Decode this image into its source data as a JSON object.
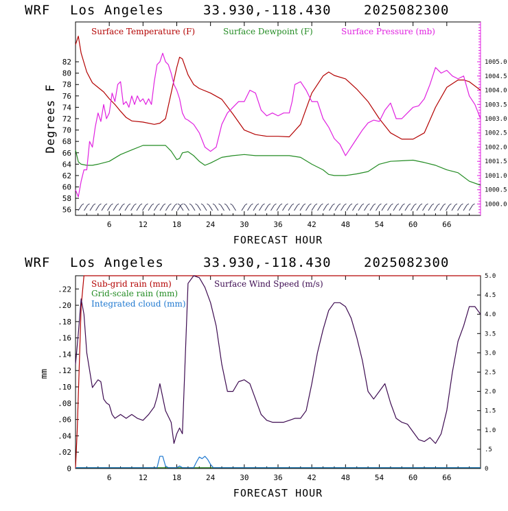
{
  "top_panel": {
    "header": {
      "model": "WRF",
      "location": "Los Angeles",
      "coords": "33.930,-118.430",
      "run": "2025082300"
    }
  },
  "bottom_panel": {
    "header": {
      "model": "WRF",
      "location": "Los Angeles",
      "coords": "33.930,-118.430",
      "run": "2025082300"
    }
  },
  "chart_data": [
    {
      "type": "line",
      "title": "WRF Los Angeles 33.930,-118.430 2025082300",
      "xlabel": "FORECAST HOUR",
      "ylabel": "Degrees F",
      "xlim": [
        0,
        72
      ],
      "ylim": [
        55,
        89
      ],
      "x_ticks": [
        6,
        12,
        18,
        24,
        30,
        36,
        42,
        48,
        54,
        60,
        66
      ],
      "x_tick_labels": [
        "6",
        "12",
        "18",
        "24",
        "30",
        "36",
        "42",
        "48",
        "54",
        "60",
        "66"
      ],
      "y_ticks": [
        56,
        58,
        60,
        62,
        64,
        66,
        68,
        70,
        72,
        74,
        76,
        78,
        80,
        82
      ],
      "y_tick_labels": [
        "56",
        "58",
        "60",
        "62",
        "64",
        "66",
        "68",
        "70",
        "72",
        "74",
        "76",
        "78",
        "80",
        "82"
      ],
      "y2lim": [
        999.6,
        1006.4
      ],
      "y2_ticks": [
        1000.0,
        1000.5,
        1001.0,
        1001.5,
        1002.0,
        1002.5,
        1003.0,
        1003.5,
        1004.0,
        1004.5,
        1005.0
      ],
      "y2_tick_labels": [
        "1000.0",
        "1000.5",
        "1001.0",
        "1001.5",
        "1002.0",
        "1002.5",
        "1003.0",
        "1003.5",
        "1004.0",
        "1004.5",
        "1005.0"
      ],
      "legend_placement": "top",
      "grid": false,
      "series": [
        {
          "name": "Surface Temperature (F)",
          "color": "#b30000",
          "axis": "left",
          "x": [
            0,
            0.5,
            1,
            2,
            3,
            4,
            5,
            6,
            7,
            8,
            9,
            10,
            12,
            14,
            15,
            16,
            17,
            18,
            18.5,
            19,
            20,
            21,
            22,
            24,
            26,
            28,
            30,
            32,
            34,
            36,
            38,
            40,
            42,
            44,
            45,
            46,
            48,
            50,
            52,
            54,
            56,
            58,
            60,
            62,
            64,
            66,
            68,
            69,
            70,
            72
          ],
          "y": [
            85,
            86.5,
            83.5,
            80.2,
            78.3,
            77.5,
            76.7,
            75.5,
            74.5,
            73.3,
            72.2,
            71.6,
            71.4,
            71,
            71.2,
            72,
            76.5,
            81,
            82.8,
            82.5,
            79.7,
            78,
            77.3,
            76.5,
            75.4,
            72.8,
            70,
            69.2,
            68.9,
            68.9,
            68.8,
            71,
            76.5,
            79.5,
            80.2,
            79.6,
            79,
            77.2,
            75,
            72,
            69.5,
            68.4,
            68.4,
            69.5,
            74,
            77.5,
            78.8,
            78.8,
            78.5,
            77
          ]
        },
        {
          "name": "Surface Dewpoint (F)",
          "color": "#228b22",
          "axis": "left",
          "x": [
            0,
            0.5,
            1,
            2,
            3,
            4,
            6,
            8,
            10,
            12,
            14,
            16,
            17,
            18,
            18.5,
            19,
            20,
            21,
            22,
            23,
            24,
            26,
            28,
            30,
            32,
            34,
            36,
            38,
            40,
            42,
            44,
            45,
            46,
            48,
            50,
            52,
            54,
            56,
            58,
            60,
            62,
            64,
            66,
            68,
            70,
            72
          ],
          "y": [
            66.5,
            64.4,
            64,
            63.8,
            63.8,
            64,
            64.5,
            65.7,
            66.5,
            67.3,
            67.3,
            67.3,
            66.3,
            64.8,
            65,
            66,
            66.2,
            65.5,
            64.5,
            63.8,
            64.2,
            65.2,
            65.5,
            65.7,
            65.5,
            65.5,
            65.5,
            65.5,
            65.2,
            64,
            63,
            62.2,
            62,
            62,
            62.3,
            62.7,
            64,
            64.5,
            64.6,
            64.7,
            64.3,
            63.8,
            63,
            62.5,
            61,
            60.3
          ]
        },
        {
          "name": "Surface Pressure (mb)",
          "color": "#e020e0",
          "axis": "right",
          "x": [
            0,
            0.5,
            1,
            1.5,
            2,
            2.5,
            3,
            3.5,
            4,
            4.5,
            5,
            5.5,
            6,
            6.5,
            7,
            7.5,
            8,
            8.5,
            9,
            9.5,
            10,
            10.5,
            11,
            11.5,
            12,
            12.5,
            13,
            13.5,
            14,
            14.5,
            15,
            15.5,
            16,
            16.5,
            17,
            17.5,
            18,
            18.5,
            19,
            19.5,
            20,
            21,
            22,
            23,
            24,
            25,
            26,
            27,
            28,
            29,
            30,
            31,
            32,
            33,
            34,
            35,
            36,
            37,
            38,
            38.5,
            39,
            40,
            41,
            42,
            43,
            44,
            45,
            46,
            47,
            48,
            49,
            50,
            51,
            52,
            53,
            54,
            55,
            56,
            57,
            58,
            59,
            60,
            61,
            62,
            63,
            64,
            65,
            66,
            67,
            68,
            69,
            70,
            71,
            72
          ],
          "y": [
            1000.5,
            1000.25,
            1000.8,
            1001.2,
            1001.2,
            1002.2,
            1002.0,
            1002.7,
            1003.2,
            1002.9,
            1003.5,
            1003.0,
            1003.2,
            1003.9,
            1003.6,
            1004.2,
            1004.3,
            1003.5,
            1003.6,
            1003.4,
            1003.8,
            1003.5,
            1003.8,
            1003.6,
            1003.7,
            1003.5,
            1003.7,
            1003.5,
            1004.3,
            1004.9,
            1005.0,
            1005.3,
            1005.0,
            1004.9,
            1004.6,
            1004.2,
            1004.0,
            1003.7,
            1003.2,
            1003.0,
            1002.95,
            1002.8,
            1002.5,
            1002.0,
            1001.85,
            1002.0,
            1002.8,
            1003.2,
            1003.4,
            1003.6,
            1003.6,
            1004.0,
            1003.9,
            1003.3,
            1003.1,
            1003.2,
            1003.1,
            1003.2,
            1003.2,
            1003.6,
            1004.2,
            1004.3,
            1004.0,
            1003.6,
            1003.6,
            1003.0,
            1002.7,
            1002.3,
            1002.1,
            1001.7,
            1002.0,
            1002.3,
            1002.6,
            1002.85,
            1002.95,
            1002.9,
            1003.3,
            1003.55,
            1003.0,
            1003.0,
            1003.2,
            1003.4,
            1003.45,
            1003.7,
            1004.2,
            1004.8,
            1004.6,
            1004.7,
            1004.5,
            1004.4,
            1004.5,
            1003.8,
            1003.5,
            1003.0
          ]
        }
      ]
    },
    {
      "type": "line",
      "title": "WRF Los Angeles 33.930,-118.430 2025082300",
      "xlabel": "FORECAST HOUR",
      "ylabel": "mm",
      "xlim": [
        0,
        72
      ],
      "ylim": [
        0,
        0.2362
      ],
      "x_ticks": [
        6,
        12,
        18,
        24,
        30,
        36,
        42,
        48,
        54,
        60,
        66
      ],
      "x_tick_labels": [
        "6",
        "12",
        "18",
        "24",
        "30",
        "36",
        "42",
        "48",
        "54",
        "60",
        "66"
      ],
      "y_ticks": [
        0,
        0.02,
        0.04,
        0.06,
        0.08,
        0.1,
        0.12,
        0.14,
        0.16,
        0.18,
        0.2,
        0.22
      ],
      "y_tick_labels": [
        "0",
        ".02",
        ".04",
        ".06",
        ".08",
        ".10",
        ".12",
        ".14",
        ".16",
        ".18",
        ".20",
        ".22"
      ],
      "y2lim": [
        0,
        5.0
      ],
      "y2_ticks": [
        0,
        0.5,
        1.0,
        1.5,
        2.0,
        2.5,
        3.0,
        3.5,
        4.0,
        4.5,
        5.0
      ],
      "y2_tick_labels": [
        "0",
        ".5",
        "1.0",
        "1.5",
        "2.0",
        "2.5",
        "3.0",
        "3.5",
        "4.0",
        "4.5",
        "5.0"
      ],
      "legend_placement": "top-left",
      "grid": false,
      "series": [
        {
          "name": "Sub-grid rain (mm)",
          "color": "#b30000",
          "axis": "right",
          "x": [
            0,
            0.3,
            1,
            1.5,
            2,
            72
          ],
          "y": [
            0,
            1.0,
            4.2,
            5.0,
            5.0,
            5.0
          ]
        },
        {
          "name": "Grid-scale rain (mm)",
          "color": "#228b22",
          "axis": "left",
          "x": [
            0,
            72
          ],
          "y": [
            0.001,
            0.001
          ]
        },
        {
          "name": "Integrated cloud (mm)",
          "color": "#1e78d0",
          "axis": "left",
          "x": [
            0,
            14.5,
            15,
            15.5,
            16,
            16.5,
            17,
            18,
            18.5,
            19,
            19.5,
            20,
            21,
            21.5,
            22,
            22.5,
            23,
            23.5,
            24,
            24.5,
            25,
            72
          ],
          "y": [
            0.001,
            0.001,
            0.015,
            0.015,
            0.003,
            0.001,
            0.001,
            0.001,
            0.003,
            0.001,
            0.001,
            0.001,
            0.001,
            0.008,
            0.014,
            0.012,
            0.015,
            0.011,
            0.005,
            0.001,
            0.001,
            0.001
          ]
        },
        {
          "name": "Surface Wind Speed (m/s)",
          "color": "#3c0a50",
          "axis": "right",
          "x": [
            0,
            0.5,
            1,
            1.5,
            2,
            3,
            4,
            4.5,
            5,
            5.5,
            6,
            6.5,
            7,
            8,
            9,
            10,
            11,
            12,
            13,
            14,
            14.5,
            15,
            16,
            17,
            17.5,
            18,
            18.5,
            19,
            20,
            21,
            22,
            23,
            24,
            25,
            26,
            27,
            28,
            29,
            30,
            31,
            32,
            33,
            34,
            35,
            36,
            37,
            38,
            39,
            40,
            41,
            42,
            43,
            44,
            45,
            46,
            47,
            48,
            49,
            50,
            51,
            52,
            53,
            54,
            55,
            56,
            57,
            58,
            59,
            60,
            61,
            62,
            63,
            64,
            65,
            66,
            67,
            68,
            69,
            70,
            71,
            72
          ],
          "y": [
            2.7,
            3.5,
            4.4,
            4.0,
            3.0,
            2.1,
            2.3,
            2.25,
            1.8,
            1.7,
            1.65,
            1.4,
            1.3,
            1.4,
            1.3,
            1.4,
            1.3,
            1.25,
            1.4,
            1.6,
            1.85,
            2.2,
            1.5,
            1.2,
            0.65,
            0.9,
            1.05,
            0.9,
            4.8,
            5.0,
            4.95,
            4.7,
            4.3,
            3.7,
            2.7,
            2.0,
            2.0,
            2.25,
            2.3,
            2.2,
            1.8,
            1.4,
            1.25,
            1.2,
            1.2,
            1.2,
            1.25,
            1.3,
            1.3,
            1.5,
            2.2,
            3.0,
            3.6,
            4.1,
            4.3,
            4.3,
            4.2,
            3.9,
            3.4,
            2.8,
            2.0,
            1.8,
            2.0,
            2.2,
            1.7,
            1.3,
            1.2,
            1.15,
            0.95,
            0.75,
            0.7,
            0.8,
            0.65,
            0.9,
            1.5,
            2.5,
            3.3,
            3.7,
            4.2,
            4.2,
            4.0
          ]
        }
      ]
    }
  ]
}
